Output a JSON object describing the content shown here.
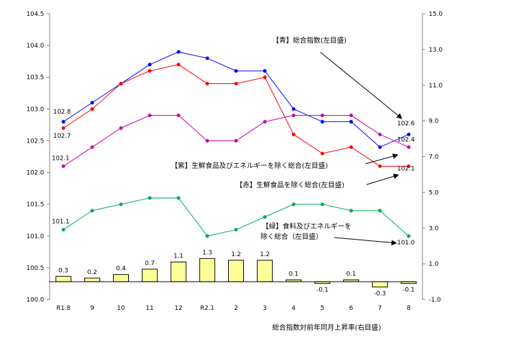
{
  "chart_data": {
    "type": "line",
    "categories": [
      "R1.8",
      "9",
      "10",
      "11",
      "12",
      "R2.1",
      "2",
      "3",
      "4",
      "5",
      "6",
      "7",
      "8"
    ],
    "left_axis": {
      "ylim": [
        100.0,
        104.5
      ],
      "step": 0.5,
      "ticks": [
        "100.0",
        "100.5",
        "101.0",
        "101.5",
        "102.0",
        "102.5",
        "103.0",
        "103.5",
        "104.0",
        "104.5"
      ]
    },
    "right_axis": {
      "ylim": [
        -1.0,
        15.0
      ],
      "step": 2.0,
      "ticks": [
        "-1.0",
        "1.0",
        "3.0",
        "5.0",
        "7.0",
        "9.0",
        "11.0",
        "13.0",
        "15.0"
      ]
    },
    "series": [
      {
        "name": "【青】総合指数(左目盛)",
        "color": "#0000ff",
        "axis": "left",
        "values": [
          102.8,
          103.1,
          103.4,
          103.7,
          103.9,
          103.8,
          103.6,
          103.6,
          103.0,
          102.8,
          102.8,
          102.4,
          102.6
        ],
        "first_label": "102.8",
        "last_label": "102.6"
      },
      {
        "name": "【赤】生鮮食品を除く総合(左目盛)",
        "color": "#ff0000",
        "axis": "left",
        "values": [
          102.7,
          103.0,
          103.4,
          103.6,
          103.7,
          103.4,
          103.4,
          103.5,
          102.6,
          102.3,
          102.4,
          102.1,
          102.1
        ],
        "first_label": "102.7",
        "last_label": "102.1"
      },
      {
        "name": "【紫】生鮮食品及びエネルギーを除く総合(左目盛)",
        "color": "#cc00aa",
        "axis": "left",
        "values": [
          102.1,
          102.4,
          102.7,
          102.9,
          102.9,
          102.5,
          102.5,
          102.8,
          102.9,
          102.9,
          102.9,
          102.6,
          102.4
        ],
        "first_label": "102.1",
        "last_label": "102.4"
      },
      {
        "name_lines": [
          "【緑】食料及びエネルギーを",
          "除く総合（左目盛）"
        ],
        "color": "#00aa55",
        "axis": "left",
        "values": [
          101.1,
          101.4,
          101.5,
          101.6,
          101.6,
          101.0,
          101.1,
          101.3,
          101.5,
          101.5,
          101.4,
          101.4,
          101.0
        ],
        "first_label": "101.1",
        "last_label": "101.0"
      }
    ],
    "bars": {
      "name": "総合指数対前年同月上昇率(右目盛)",
      "axis": "right",
      "color": "#ffff99",
      "values": [
        0.3,
        0.2,
        0.4,
        0.7,
        1.1,
        1.3,
        1.2,
        1.2,
        0.1,
        -0.1,
        0.1,
        -0.3,
        -0.1
      ],
      "labels": [
        "0.3",
        "0.2",
        "0.4",
        "0.7",
        "1.1",
        "1.3",
        "1.2",
        "1.2",
        "0.1",
        "-0.1",
        "0.1",
        "-0.3",
        "-0.1"
      ]
    }
  }
}
